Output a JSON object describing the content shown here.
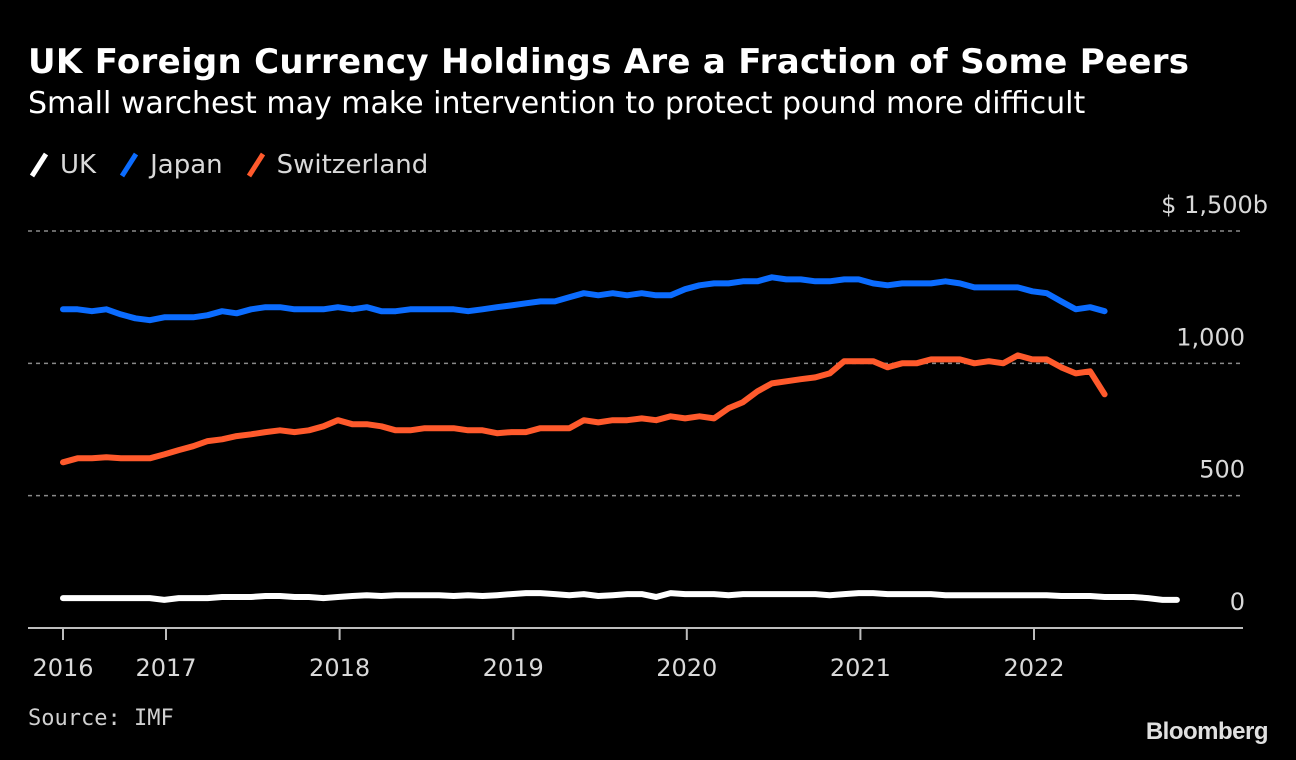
{
  "header": {
    "title": "UK Foreign Currency Holdings Are a Fraction of Some Peers",
    "subtitle": "Small warchest may make intervention to protect pound more difficult"
  },
  "legend": [
    {
      "label": "UK",
      "color": "#ffffff"
    },
    {
      "label": "Japan",
      "color": "#0b6cff"
    },
    {
      "label": "Switzerland",
      "color": "#ff5a2c"
    }
  ],
  "footer": {
    "source": "Source: IMF",
    "brand": "Bloomberg"
  },
  "chart_data": {
    "type": "line",
    "title": "UK Foreign Currency Holdings Are a Fraction of Some Peers",
    "subtitle": "Small warchest may make intervention to protect pound more difficult",
    "xlabel": "",
    "ylabel": "",
    "x_start": "2016-06",
    "x_frequency": "monthly",
    "x_range": [
      "2016-06",
      "2022-12"
    ],
    "xticks": [
      {
        "label": "2016",
        "t": 2016.42
      },
      {
        "label": "2017",
        "t": 2017.0
      },
      {
        "label": "2018",
        "t": 2018.0
      },
      {
        "label": "2019",
        "t": 2019.0
      },
      {
        "label": "2020",
        "t": 2020.0
      },
      {
        "label": "2021",
        "t": 2021.0
      },
      {
        "label": "2022",
        "t": 2022.0
      }
    ],
    "ylim": [
      0,
      1500
    ],
    "yticks": [
      {
        "value": 1500,
        "label": "$ 1,500b"
      },
      {
        "value": 1000,
        "label": "1,000"
      },
      {
        "value": 500,
        "label": "500"
      },
      {
        "value": 0,
        "label": "0"
      }
    ],
    "grid": true,
    "legend_position": "top-left",
    "series": [
      {
        "name": "UK",
        "color": "#ffffff",
        "values": [
          113,
          113,
          113,
          113,
          113,
          113,
          113,
          106,
          113,
          113,
          113,
          117,
          117,
          117,
          121,
          121,
          117,
          117,
          113,
          117,
          121,
          124,
          121,
          124,
          124,
          124,
          124,
          121,
          124,
          121,
          124,
          128,
          132,
          132,
          128,
          124,
          128,
          121,
          124,
          128,
          128,
          117,
          132,
          128,
          128,
          128,
          124,
          128,
          128,
          128,
          128,
          128,
          128,
          124,
          128,
          132,
          132,
          128,
          128,
          128,
          128,
          124,
          124,
          124,
          124,
          124,
          124,
          124,
          124,
          121,
          121,
          121,
          117,
          117,
          117,
          113,
          106,
          106
        ]
      },
      {
        "name": "Japan",
        "color": "#0b6cff",
        "values": [
          1204,
          1204,
          1197,
          1204,
          1185,
          1170,
          1163,
          1174,
          1174,
          1174,
          1182,
          1197,
          1189,
          1204,
          1212,
          1212,
          1204,
          1204,
          1204,
          1212,
          1204,
          1212,
          1197,
          1197,
          1204,
          1204,
          1204,
          1204,
          1197,
          1204,
          1212,
          1219,
          1227,
          1234,
          1234,
          1250,
          1265,
          1257,
          1265,
          1257,
          1265,
          1257,
          1257,
          1280,
          1295,
          1302,
          1302,
          1310,
          1310,
          1325,
          1317,
          1317,
          1310,
          1310,
          1317,
          1317,
          1302,
          1295,
          1302,
          1302,
          1302,
          1310,
          1302,
          1287,
          1287,
          1287,
          1287,
          1272,
          1265,
          1234,
          1204,
          1212,
          1197
        ]
      },
      {
        "name": "Switzerland",
        "color": "#ff5a2c",
        "values": [
          626,
          641,
          641,
          645,
          641,
          641,
          641,
          656,
          672,
          687,
          706,
          713,
          725,
          732,
          740,
          747,
          740,
          747,
          762,
          785,
          770,
          770,
          762,
          747,
          747,
          755,
          755,
          755,
          747,
          747,
          736,
          740,
          740,
          755,
          755,
          755,
          785,
          777,
          785,
          785,
          792,
          785,
          800,
          792,
          800,
          792,
          830,
          853,
          894,
          924,
          932,
          940,
          947,
          962,
          1008,
          1008,
          1008,
          985,
          1000,
          1000,
          1015,
          1015,
          1015,
          1000,
          1008,
          1000,
          1030,
          1015,
          1015,
          985,
          962,
          970,
          883
        ]
      }
    ]
  }
}
